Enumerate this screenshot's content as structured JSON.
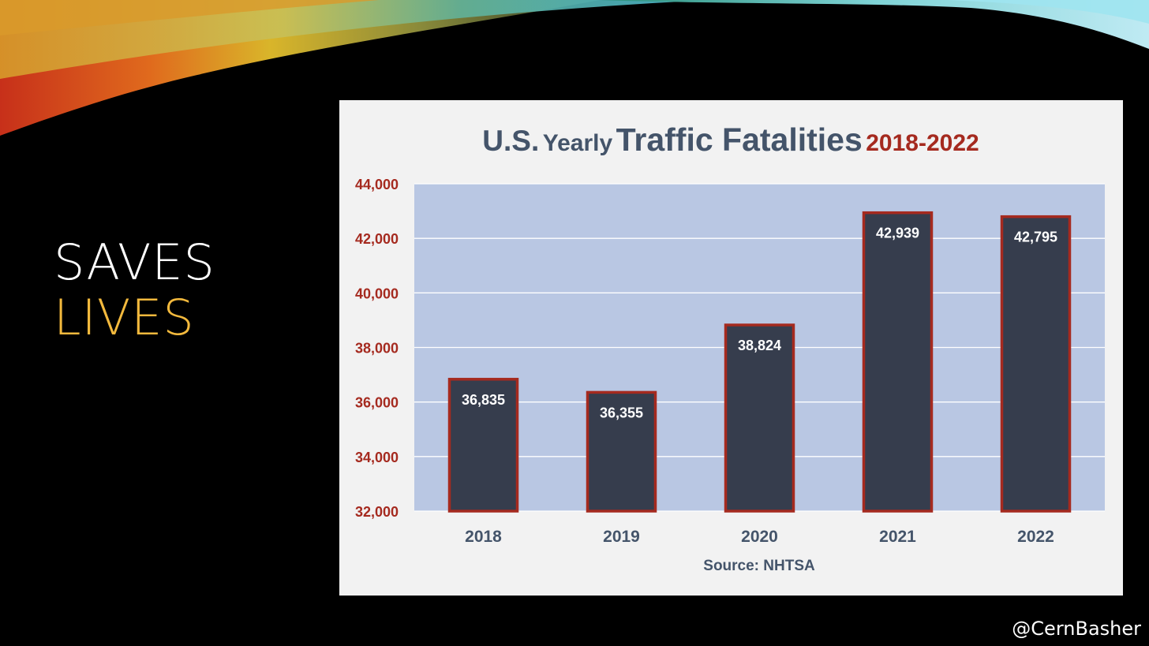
{
  "slide": {
    "title_line1": "SAVES",
    "title_line2": "LIVES",
    "handle": "@CernBasher"
  },
  "colors": {
    "background": "#000000",
    "title_white": "#ffffff",
    "title_gold": "#f3b93d",
    "chart_title": "#44546a",
    "accent_red": "#a52a1f",
    "plot_bg": "#b9c7e3",
    "bar_fill": "#363d4d"
  },
  "chart_data": {
    "type": "bar",
    "title": {
      "part1": "U.S.",
      "part2": "Yearly",
      "part3": "Traffic Fatalities",
      "part4": "2018-2022"
    },
    "categories": [
      "2018",
      "2019",
      "2020",
      "2021",
      "2022"
    ],
    "values": [
      36835,
      36355,
      38824,
      42939,
      42795
    ],
    "data_labels": [
      "36,835",
      "36,355",
      "38,824",
      "42,939",
      "42,795"
    ],
    "ylim": [
      32000,
      44000
    ],
    "yticks": [
      32000,
      34000,
      36000,
      38000,
      40000,
      42000,
      44000
    ],
    "ytick_labels": [
      "32,000",
      "34,000",
      "36,000",
      "38,000",
      "40,000",
      "42,000",
      "44,000"
    ],
    "xlabel": "Source: NHTSA",
    "ylabel": "",
    "grid": true
  }
}
